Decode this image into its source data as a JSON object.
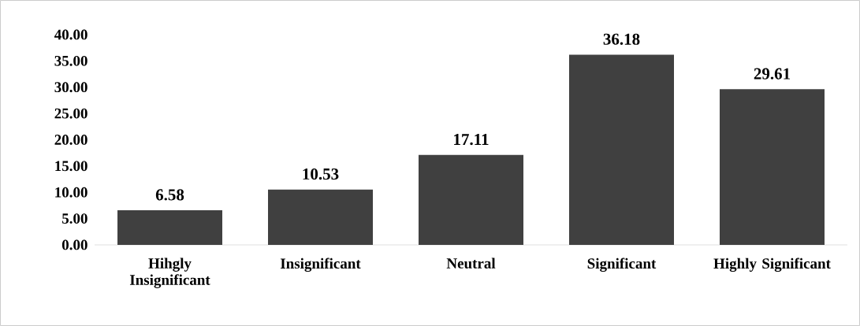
{
  "chart_data": {
    "type": "bar",
    "categories": [
      "Hihgly Insignificant",
      "Insignificant",
      "Neutral",
      "Significant",
      "Highly Significant"
    ],
    "values": [
      6.58,
      10.53,
      17.11,
      36.18,
      29.61
    ],
    "color": "#404040",
    "data_labels": true,
    "ylim": [
      0,
      40
    ],
    "yticks": [
      {
        "value": 0,
        "label": "0.00"
      },
      {
        "value": 5,
        "label": "5.00"
      },
      {
        "value": 10,
        "label": "10.00"
      },
      {
        "value": 15,
        "label": "15.00"
      },
      {
        "value": 20,
        "label": "20.00"
      },
      {
        "value": 25,
        "label": "25.00"
      },
      {
        "value": 30,
        "label": "30.00"
      },
      {
        "value": 35,
        "label": "35.00"
      },
      {
        "value": 40,
        "label": "40.00"
      }
    ]
  }
}
